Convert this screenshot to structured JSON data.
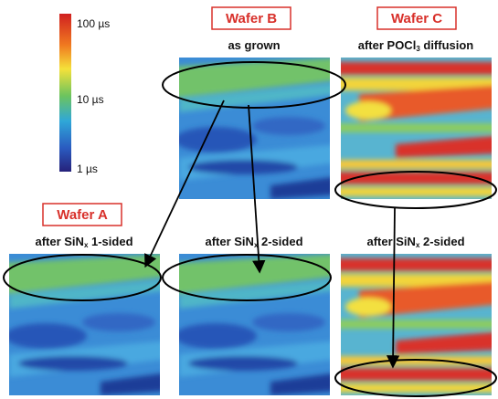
{
  "colorbar": {
    "labels": [
      "100 µs",
      "10 µs",
      "1 µs"
    ]
  },
  "wafer_labels": [
    "Wafer A",
    "Wafer B",
    "Wafer C"
  ],
  "panels": [
    {
      "title": [
        "as grown"
      ]
    },
    {
      "title": [
        "after POCl",
        "3",
        " diffusion"
      ]
    },
    {
      "title": [
        "after SiN",
        "x",
        " 1-sided"
      ]
    },
    {
      "title": [
        "after SiN",
        "x",
        " 2-sided"
      ]
    },
    {
      "title": [
        "after SiN",
        "x",
        " 2-sided"
      ]
    }
  ]
}
